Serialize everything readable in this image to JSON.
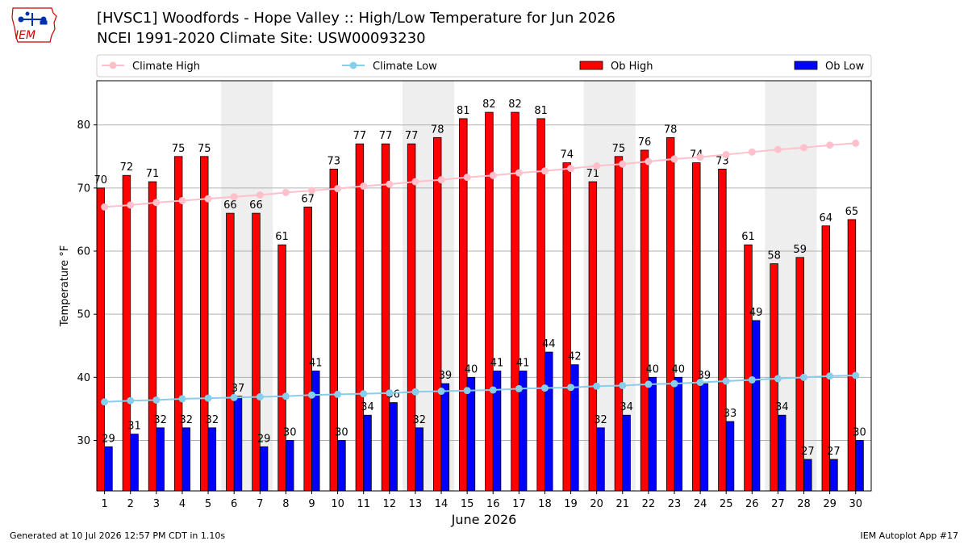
{
  "header": {
    "title_line1": "[HVSC1] Woodfords - Hope Valley :: High/Low Temperature for Jun 2026",
    "title_line2": "NCEI 1991-2020 Climate Site: USW00093230",
    "logo_text": "IEM"
  },
  "footer": {
    "generated": "Generated at 10 Jul 2026 12:57 PM CDT in 1.10s",
    "app": "IEM Autoplot App #17"
  },
  "colors": {
    "climate_high": "#ffc0cb",
    "climate_low": "#87ceeb",
    "ob_high": "#ff0000",
    "ob_low": "#0000ff",
    "weekend_shade": "#eeeeee",
    "grid": "#b0b0b0",
    "logo": "#cc0000"
  },
  "chart_data": {
    "type": "bar",
    "xlabel": "June 2026",
    "ylabel": "Temperature °F",
    "ylim": [
      22,
      87
    ],
    "yticks": [
      30,
      40,
      50,
      60,
      70,
      80
    ],
    "grid": "horizontal",
    "legend_position": "top",
    "categories": [
      "1",
      "2",
      "3",
      "4",
      "5",
      "6",
      "7",
      "8",
      "9",
      "10",
      "11",
      "12",
      "13",
      "14",
      "15",
      "16",
      "17",
      "18",
      "19",
      "20",
      "21",
      "22",
      "23",
      "24",
      "25",
      "26",
      "27",
      "28",
      "29",
      "30"
    ],
    "shaded_days": [
      [
        6,
        7
      ],
      [
        13,
        14
      ],
      [
        20,
        21
      ],
      [
        27,
        28
      ]
    ],
    "series": [
      {
        "name": "Climate High",
        "type": "line",
        "values": [
          67.0,
          67.3,
          67.7,
          68.0,
          68.3,
          68.6,
          68.9,
          69.3,
          69.6,
          69.9,
          70.3,
          70.6,
          71.0,
          71.3,
          71.7,
          72.0,
          72.4,
          72.7,
          73.1,
          73.5,
          73.8,
          74.2,
          74.6,
          74.9,
          75.3,
          75.7,
          76.1,
          76.4,
          76.8,
          77.1
        ]
      },
      {
        "name": "Climate Low",
        "type": "line",
        "values": [
          36.1,
          36.3,
          36.4,
          36.6,
          36.7,
          36.8,
          36.9,
          37.0,
          37.2,
          37.3,
          37.4,
          37.5,
          37.7,
          37.8,
          37.9,
          38.0,
          38.2,
          38.3,
          38.4,
          38.6,
          38.7,
          38.9,
          39.0,
          39.2,
          39.4,
          39.6,
          39.8,
          40.0,
          40.2,
          40.3
        ]
      },
      {
        "name": "Ob High",
        "type": "bar",
        "values": [
          70,
          72,
          71,
          75,
          75,
          66,
          66,
          61,
          67,
          73,
          77,
          77,
          77,
          78,
          81,
          82,
          82,
          81,
          74,
          71,
          75,
          76,
          78,
          74,
          73,
          61,
          58,
          59,
          64,
          65
        ]
      },
      {
        "name": "Ob Low",
        "type": "bar",
        "values": [
          29,
          31,
          32,
          32,
          32,
          37,
          29,
          30,
          41,
          30,
          34,
          36,
          32,
          39,
          40,
          41,
          41,
          44,
          42,
          32,
          34,
          40,
          40,
          39,
          33,
          49,
          34,
          27,
          27,
          30
        ]
      }
    ]
  }
}
